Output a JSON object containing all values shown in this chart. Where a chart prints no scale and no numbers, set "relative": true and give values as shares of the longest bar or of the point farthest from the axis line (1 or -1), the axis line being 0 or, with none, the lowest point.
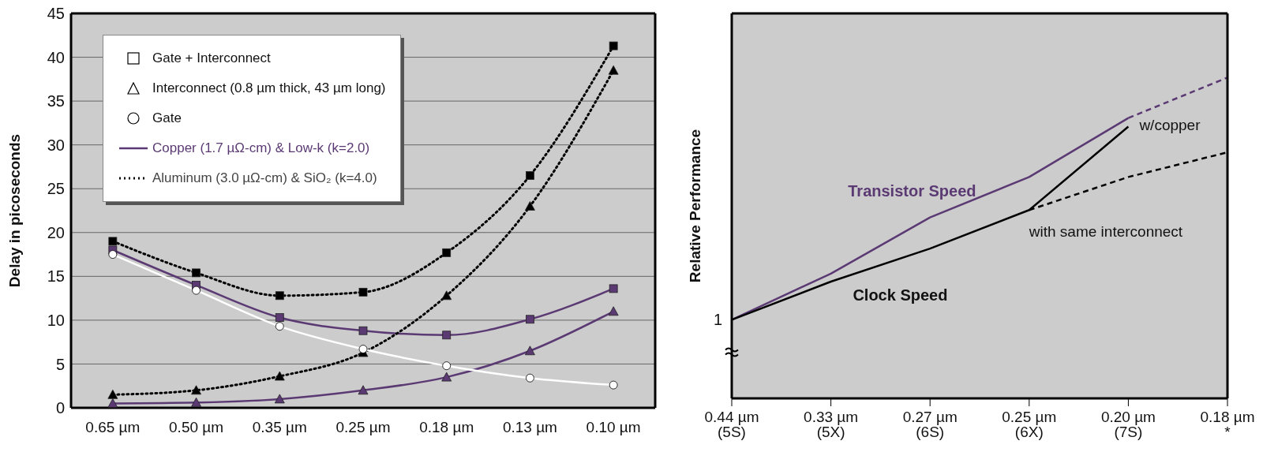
{
  "chart_data": [
    {
      "type": "line",
      "categories": [
        "0.65 µm",
        "0.50 µm",
        "0.35 µm",
        "0.25 µm",
        "0.18 µm",
        "0.13 µm",
        "0.10 µm"
      ],
      "ylabel": "Delay in picoseconds",
      "ylim": [
        0,
        45
      ],
      "yticks": [
        0,
        5,
        10,
        15,
        20,
        25,
        30,
        35,
        40,
        45
      ],
      "grid": "y",
      "annotations": [
        "Gate + Interconnect",
        "Interconnect (0.8 µm thick, 43 µm long)",
        "Gate",
        "Copper (1.7 µΩ-cm) & Low-k (k=2.0)",
        "Aluminum (3.0 µΩ-cm) & SiO₂ (k=4.0)"
      ],
      "series": [
        {
          "color": "#5b3a74",
          "marker": "square",
          "line_style": "solid",
          "values": [
            18,
            14,
            10.3,
            8.8,
            8.3,
            10.1,
            13.6
          ]
        },
        {
          "color": "#5b3a74",
          "marker": "triangle",
          "line_style": "solid",
          "values": [
            0.5,
            0.6,
            1.0,
            2.0,
            3.5,
            6.5,
            11.0
          ]
        },
        {
          "color": "#000000",
          "marker": "square",
          "line_style": "dotted",
          "values": [
            19,
            15.4,
            12.8,
            13.2,
            17.7,
            26.5,
            41.3
          ]
        },
        {
          "color": "#000000",
          "marker": "triangle",
          "line_style": "dotted",
          "values": [
            1.5,
            2.0,
            3.6,
            6.3,
            12.8,
            23.0,
            38.5
          ]
        },
        {
          "color": "#ffffff",
          "marker": "circle",
          "line_style": "solid",
          "values": [
            17.5,
            13.4,
            9.3,
            6.7,
            4.8,
            3.4,
            2.6
          ]
        }
      ]
    },
    {
      "type": "line",
      "relative": true,
      "categories": [
        "0.44 µm\n(5S)",
        "0.33 µm\n(5X)",
        "0.27 µm\n(6S)",
        "0.25 µm\n(6X)",
        "0.20 µm\n(7S)",
        "0.18 µm\n*"
      ],
      "ylabel": "Relative Performance",
      "annotations": [
        "1",
        {
          "text": "w/copper",
          "x": "0.20 µm\n(7S)",
          "y": 0.847
        }
      ],
      "series": [
        {
          "name": "Transistor Speed",
          "color": "#5b3a74",
          "line_style": "solid",
          "values": [
            0.245,
            0.389,
            0.564,
            0.69,
            0.874,
            null
          ]
        },
        {
          "color": "#5b3a74",
          "line_style": "dashed",
          "values": [
            null,
            null,
            null,
            null,
            0.874,
            1
          ]
        },
        {
          "name": "Clock Speed",
          "color": "#000000",
          "line_style": "solid",
          "values": [
            0.245,
            0.364,
            0.467,
            0.587,
            0.847,
            null
          ]
        },
        {
          "name": "with same interconnect",
          "color": "#000000",
          "line_style": "dashed",
          "values": [
            null,
            null,
            null,
            0.587,
            0.69,
            0.767
          ]
        }
      ]
    }
  ]
}
